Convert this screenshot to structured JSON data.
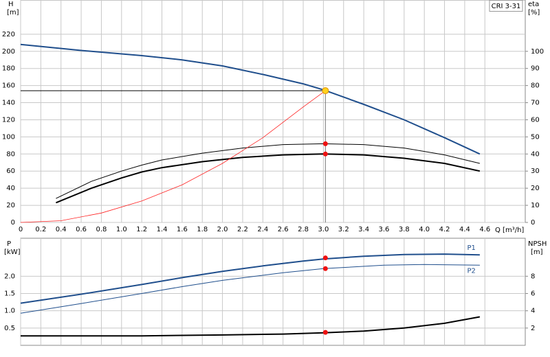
{
  "chart_data": [
    {
      "type": "line",
      "title": "CRI 3-31",
      "y_label": "H",
      "y_unit": "[m]",
      "y2_label": "eta",
      "y2_unit": "[%]",
      "x_label": "Q [m³/h]",
      "xlim": [
        0,
        5
      ],
      "xticks": [
        0,
        0.2,
        0.4,
        0.6,
        0.8,
        {
          "value": 1,
          "label": "1.0"
        },
        1.2,
        1.4,
        1.6,
        1.8,
        {
          "value": 2,
          "label": "2.0"
        },
        2.2,
        2.4,
        2.6,
        2.8,
        {
          "value": 3,
          "label": "3.0"
        },
        3.2,
        3.4,
        3.6,
        3.8,
        {
          "value": 4,
          "label": "4.0"
        },
        4.2,
        4.4,
        4.6
      ],
      "ylim": [
        0,
        260
      ],
      "yticks": [
        0,
        20,
        40,
        60,
        80,
        100,
        120,
        140,
        160,
        180,
        200,
        220
      ],
      "y2lim": [
        0,
        130
      ],
      "y2ticks": [
        0,
        10,
        20,
        30,
        40,
        50,
        60,
        70,
        80,
        90,
        100
      ],
      "grid": true,
      "series": [
        {
          "color": "#1f4e8c",
          "width": 2,
          "x": [
            0,
            0.6,
            1.2,
            1.6,
            2.0,
            2.4,
            2.8,
            3.0,
            3.4,
            3.8,
            4.2,
            4.55
          ],
          "values": [
            208,
            201,
            195,
            190,
            183,
            173,
            162,
            155,
            138,
            120,
            99,
            80
          ]
        },
        {
          "color": "#000000",
          "width": 1,
          "axis": "y2",
          "x": [
            0.35,
            0.7,
            1.0,
            1.2,
            1.4,
            1.8,
            2.2,
            2.6,
            3.0,
            3.4,
            3.8,
            4.2,
            4.55
          ],
          "values": [
            14,
            24,
            30,
            33.5,
            36.5,
            40.5,
            43.5,
            45.5,
            46,
            45.5,
            43.5,
            39.5,
            34.5
          ]
        },
        {
          "color": "#000000",
          "width": 2,
          "axis": "y2",
          "x": [
            0.35,
            0.7,
            1.0,
            1.2,
            1.4,
            1.8,
            2.2,
            2.6,
            3.0,
            3.4,
            3.8,
            4.2,
            4.55
          ],
          "values": [
            11.5,
            20,
            26,
            29.5,
            32,
            35.5,
            38,
            39.5,
            40,
            39.5,
            37.5,
            34.5,
            30
          ]
        },
        {
          "color": "#ff2020",
          "width": 0.8,
          "x": [
            0,
            0.4,
            0.8,
            1.2,
            1.6,
            2.0,
            2.4,
            2.8,
            3.02
          ],
          "values": [
            0,
            2,
            11,
            25,
            44,
            69,
            99,
            135,
            154
          ]
        }
      ],
      "duty_point": {
        "x": 3.02,
        "y": 154,
        "color": "#ffd21f"
      },
      "points": [
        {
          "x": 3.02,
          "y": 46,
          "axis": "y2",
          "color": "#ee1111"
        },
        {
          "x": 3.02,
          "y": 40,
          "axis": "y2",
          "color": "#ee1111"
        }
      ]
    },
    {
      "type": "line",
      "y_label": "P",
      "y_unit": "[kW]",
      "y2_label": "NPSH",
      "y2_unit": "[m]",
      "xlim": [
        0,
        5
      ],
      "ylim": [
        0,
        3.1
      ],
      "yticks": [
        0.5,
        {
          "value": 1,
          "label": "1.0"
        },
        1.5,
        {
          "value": 2,
          "label": "2.0"
        }
      ],
      "y2lim": [
        0,
        12.4
      ],
      "y2ticks": [
        2,
        4,
        6,
        8
      ],
      "grid": true,
      "series": [
        {
          "name": "P1",
          "color": "#1f4e8c",
          "width": 2,
          "x": [
            0,
            0.6,
            1.2,
            1.6,
            2.0,
            2.4,
            2.8,
            3.0,
            3.4,
            3.8,
            4.2,
            4.55
          ],
          "values": [
            1.22,
            1.48,
            1.76,
            1.96,
            2.14,
            2.3,
            2.44,
            2.5,
            2.58,
            2.63,
            2.64,
            2.62
          ]
        },
        {
          "name": "P2",
          "color": "#1f4e8c",
          "width": 1,
          "x": [
            0,
            0.6,
            1.2,
            1.6,
            2.0,
            2.6,
            3.0,
            3.6,
            4.0,
            4.55
          ],
          "values": [
            0.93,
            1.21,
            1.5,
            1.7,
            1.88,
            2.1,
            2.22,
            2.32,
            2.34,
            2.32
          ]
        },
        {
          "color": "#000000",
          "width": 2,
          "axis": "y2",
          "x": [
            0,
            1.2,
            2.0,
            2.6,
            3.0,
            3.4,
            3.8,
            4.2,
            4.55
          ],
          "values": [
            1.1,
            1.1,
            1.2,
            1.3,
            1.45,
            1.65,
            2.0,
            2.55,
            3.3
          ]
        }
      ],
      "points": [
        {
          "x": 3.02,
          "y": 2.53,
          "color": "#ee1111"
        },
        {
          "x": 3.02,
          "y": 2.22,
          "color": "#ee1111"
        },
        {
          "x": 3.02,
          "y": 1.5,
          "axis": "y2",
          "color": "#ee1111"
        }
      ]
    }
  ]
}
